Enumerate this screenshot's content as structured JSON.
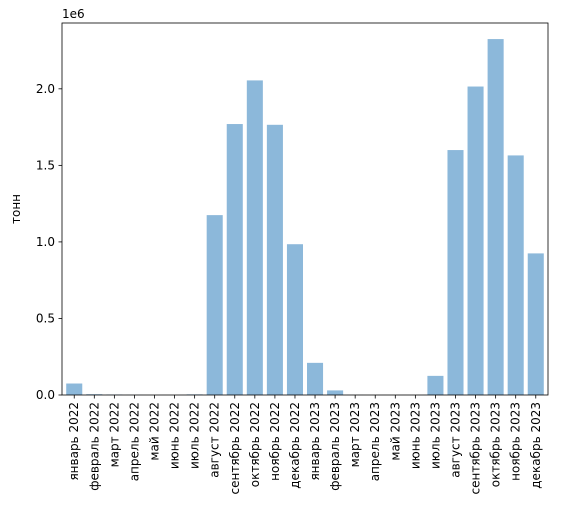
{
  "chart_data": {
    "type": "bar",
    "title": "",
    "xlabel": "",
    "ylabel": "тонн",
    "offset_label": "1e6",
    "categories": [
      "январь 2022",
      "февраль 2022",
      "март 2022",
      "апрель 2022",
      "май 2022",
      "июнь 2022",
      "июль 2022",
      "август 2022",
      "сентябрь 2022",
      "октябрь 2022",
      "ноябрь 2022",
      "декабрь 2022",
      "январь 2023",
      "февраль 2023",
      "март 2023",
      "апрель 2023",
      "май 2023",
      "июнь 2023",
      "июль 2023",
      "август 2023",
      "сентябрь 2023",
      "октябрь 2023",
      "ноябрь 2023",
      "декабрь 2023"
    ],
    "values": [
      75000,
      5000,
      3000,
      1000,
      0,
      0,
      4000,
      1175000,
      1770000,
      2055000,
      1765000,
      985000,
      210000,
      30000,
      1000,
      0,
      0,
      0,
      125000,
      1600000,
      2015000,
      2325000,
      1565000,
      925000
    ],
    "ylim": [
      0,
      2430000
    ],
    "yticks": [
      0,
      500000,
      1000000,
      1500000,
      2000000
    ],
    "ytick_labels": [
      "0.0",
      "0.5",
      "1.0",
      "1.5",
      "2.0"
    ],
    "grid": false,
    "bar_color": "#8cb8da"
  }
}
